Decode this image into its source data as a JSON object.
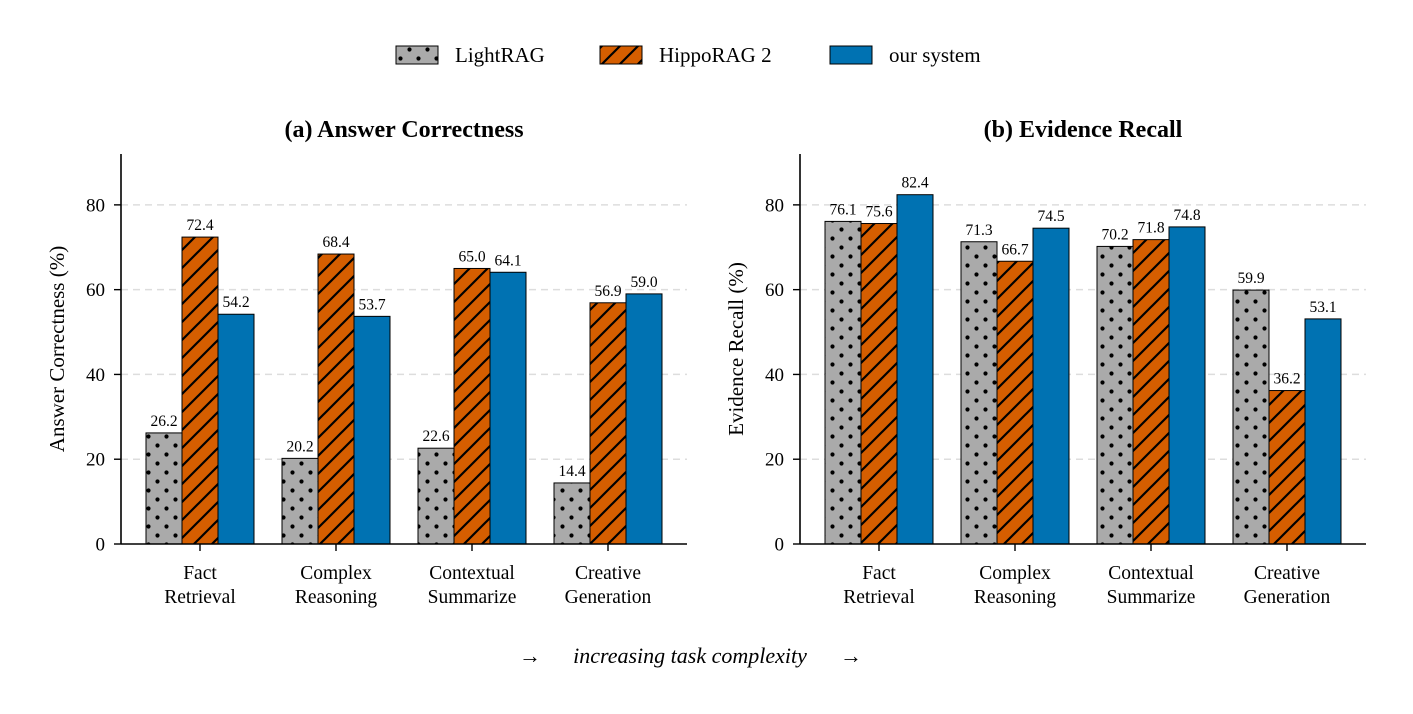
{
  "legend": [
    {
      "name": "LightRAG",
      "pattern": "dots",
      "color": "#aaaaaa"
    },
    {
      "name": "HippoRAG 2",
      "pattern": "hatch",
      "color": "#d55e00"
    },
    {
      "name": "our system",
      "pattern": "solid",
      "color": "#0072b2"
    }
  ],
  "caption": {
    "arrow_left": "→",
    "text": "increasing task complexity",
    "arrow_right": "→"
  },
  "chart_data": [
    {
      "type": "bar",
      "title": "(a) Answer Correctness",
      "ylabel": "Answer Correctness (%)",
      "xlabel": "",
      "ylim": [
        0,
        92
      ],
      "yticks": [
        0,
        20,
        40,
        60,
        80
      ],
      "grid": "horizontal dashed",
      "categories": [
        [
          "Fact",
          "Retrieval"
        ],
        [
          "Complex",
          "Reasoning"
        ],
        [
          "Contextual",
          "Summarize"
        ],
        [
          "Creative",
          "Generation"
        ]
      ],
      "series": [
        {
          "name": "LightRAG",
          "values": [
            26.2,
            20.2,
            22.6,
            14.4
          ],
          "labels": [
            "26.2",
            "20.2",
            "22.6",
            "14.4"
          ]
        },
        {
          "name": "HippoRAG 2",
          "values": [
            72.4,
            68.4,
            65.0,
            56.9
          ],
          "labels": [
            "72.4",
            "68.4",
            "65.0",
            "56.9"
          ]
        },
        {
          "name": "our system",
          "values": [
            54.2,
            53.7,
            64.1,
            59.0
          ],
          "labels": [
            "54.2",
            "53.7",
            "64.1",
            "59.0"
          ]
        }
      ]
    },
    {
      "type": "bar",
      "title": "(b) Evidence Recall",
      "ylabel": "Evidence Recall (%)",
      "xlabel": "",
      "ylim": [
        0,
        92
      ],
      "yticks": [
        0,
        20,
        40,
        60,
        80
      ],
      "grid": "horizontal dashed",
      "categories": [
        [
          "Fact",
          "Retrieval"
        ],
        [
          "Complex",
          "Reasoning"
        ],
        [
          "Contextual",
          "Summarize"
        ],
        [
          "Creative",
          "Generation"
        ]
      ],
      "series": [
        {
          "name": "LightRAG",
          "values": [
            76.1,
            71.3,
            70.2,
            59.9
          ],
          "labels": [
            "76.1",
            "71.3",
            "70.2",
            "59.9"
          ]
        },
        {
          "name": "HippoRAG 2",
          "values": [
            75.6,
            66.7,
            71.8,
            36.2
          ],
          "labels": [
            "75.6",
            "66.7",
            "71.8",
            "36.2"
          ]
        },
        {
          "name": "our system",
          "values": [
            82.4,
            74.5,
            74.8,
            53.1
          ],
          "labels": [
            "82.4",
            "74.5",
            "74.8",
            "53.1"
          ]
        }
      ]
    }
  ]
}
